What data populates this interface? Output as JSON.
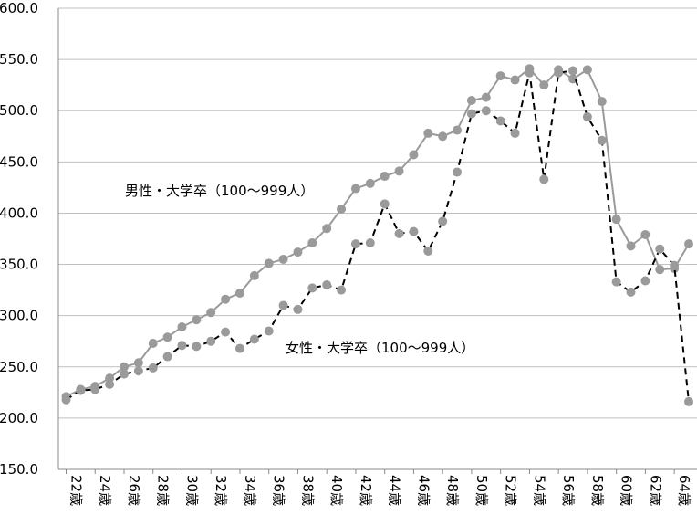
{
  "chart_data": {
    "type": "line",
    "title": "",
    "xlabel": "",
    "ylabel": "",
    "ylim": [
      150,
      600
    ],
    "yticks": [
      "150.0",
      "200.0",
      "250.0",
      "300.0",
      "350.0",
      "400.0",
      "450.0",
      "500.0",
      "550.0",
      "600.0"
    ],
    "grid": "horizontal",
    "legend": "none",
    "x": [
      22,
      23,
      24,
      25,
      26,
      27,
      28,
      29,
      30,
      31,
      32,
      33,
      34,
      35,
      36,
      37,
      38,
      39,
      40,
      41,
      42,
      43,
      44,
      45,
      46,
      47,
      48,
      49,
      50,
      51,
      52,
      53,
      54,
      55,
      56,
      57,
      58,
      59,
      60,
      61,
      62,
      63,
      64,
      65
    ],
    "xtick_labels": [
      "22歳",
      "24歳",
      "26歳",
      "28歳",
      "30歳",
      "32歳",
      "34歳",
      "36歳",
      "38歳",
      "40歳",
      "42歳",
      "44歳",
      "46歳",
      "48歳",
      "50歳",
      "52歳",
      "54歳",
      "56歳",
      "58歳",
      "60歳",
      "62歳",
      "64歳"
    ],
    "series": [
      {
        "name": "男性・大学卒（100～999人）",
        "style": "solid",
        "color": "#9a9a9a",
        "values": [
          221,
          228,
          231,
          239,
          250,
          254,
          273,
          279,
          289,
          296,
          303,
          316,
          322,
          339,
          351,
          355,
          362,
          371,
          385,
          404,
          424,
          429,
          436,
          441,
          457,
          478,
          475,
          481,
          510,
          513,
          534,
          530,
          541,
          525,
          540,
          531,
          540,
          509,
          394,
          368,
          379,
          345,
          346,
          370
        ]
      },
      {
        "name": "女性・大学卒（100～999人）",
        "style": "dashed",
        "color": "#000000",
        "values": [
          218,
          227,
          228,
          233,
          243,
          246,
          249,
          260,
          271,
          270,
          275,
          284,
          268,
          277,
          285,
          310,
          306,
          327,
          330,
          325,
          370,
          371,
          409,
          380,
          382,
          363,
          392,
          440,
          497,
          500,
          490,
          478,
          537,
          433,
          537,
          539,
          494,
          471,
          333,
          323,
          334,
          365,
          349,
          216
        ]
      }
    ],
    "annotations": [
      "男性・大学卒（100～999人）",
      "女性・大学卒（100～999人）"
    ]
  },
  "colors": {
    "male_line": "#9a9a9a",
    "female_line": "#000000",
    "marker": "#9a9a9a",
    "grid": "#c0c0c0",
    "axis": "#888888"
  }
}
